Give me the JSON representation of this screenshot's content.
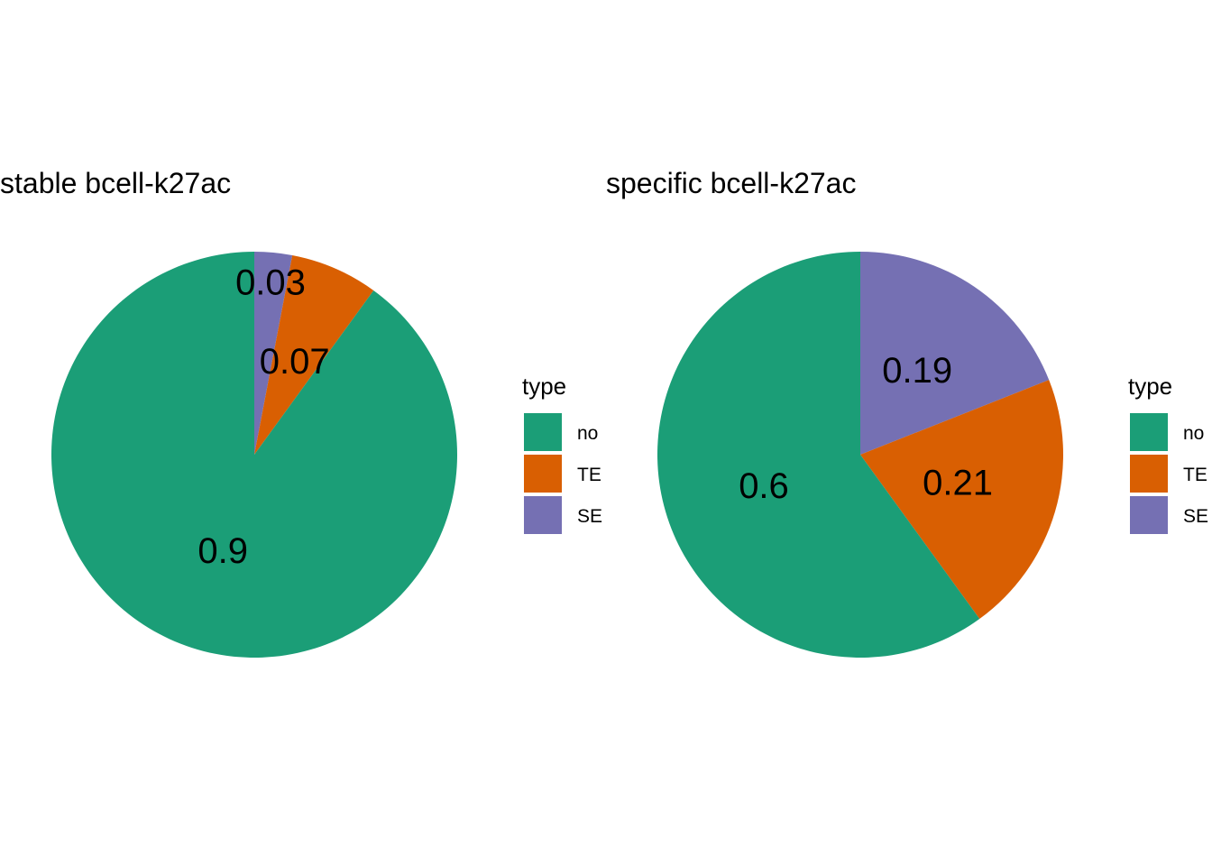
{
  "chart_data": [
    {
      "type": "pie",
      "title": "stable bcell-k27ac",
      "legend_title": "type",
      "legend_position": "right",
      "start": "top",
      "direction": "clockwise",
      "categories": [
        "no",
        "TE",
        "SE"
      ],
      "values": [
        0.9,
        0.07,
        0.03
      ],
      "labels": [
        "0.9",
        "0.07",
        "0.03"
      ]
    },
    {
      "type": "pie",
      "title": "specific bcell-k27ac",
      "legend_title": "type",
      "legend_position": "right",
      "start": "top",
      "direction": "clockwise",
      "categories": [
        "no",
        "TE",
        "SE"
      ],
      "values": [
        0.6,
        0.21,
        0.19
      ],
      "labels": [
        "0.6",
        "0.21",
        "0.19"
      ]
    }
  ],
  "colors": {
    "no": "#1B9E77",
    "TE": "#D95F02",
    "SE": "#7570B3"
  }
}
